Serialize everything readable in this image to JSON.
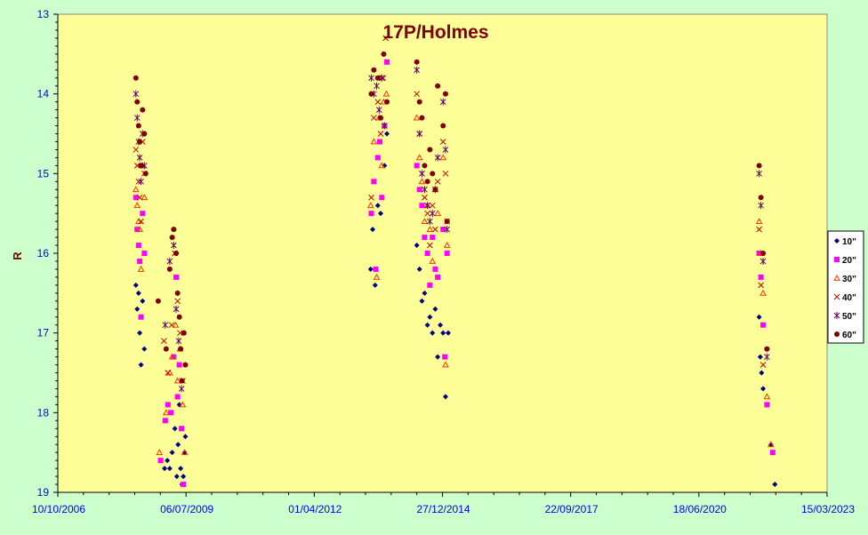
{
  "chart_data": {
    "type": "scatter",
    "title": "17P/Holmes",
    "xlabel": "",
    "ylabel": "R",
    "x_ticks": [
      "10/10/2006",
      "06/07/2009",
      "01/04/2012",
      "27/12/2014",
      "22/09/2017",
      "18/06/2020",
      "15/03/2023"
    ],
    "xlim": [
      "2006-10-10",
      "2023-03-15"
    ],
    "y_ticks": [
      "13",
      "14",
      "15",
      "16",
      "17",
      "18",
      "19"
    ],
    "ylim": [
      19,
      13
    ],
    "y_inverted": true,
    "grid": false,
    "legend_position": "right",
    "colors": {
      "page_background": "#ccffcc",
      "plot_background": "#ffff99",
      "title": "#800000",
      "tick_labels": "#0000ff"
    },
    "series": [
      {
        "name": "10\"",
        "marker": "diamond",
        "color": "#000080",
        "points": [
          [
            "2008-06-10",
            16.4
          ],
          [
            "2008-06-20",
            16.7
          ],
          [
            "2008-07-01",
            16.5
          ],
          [
            "2008-07-10",
            17.0
          ],
          [
            "2008-07-20",
            17.4
          ],
          [
            "2008-08-01",
            16.6
          ],
          [
            "2008-08-15",
            17.2
          ],
          [
            "2009-01-20",
            18.7
          ],
          [
            "2009-02-10",
            18.6
          ],
          [
            "2009-03-01",
            18.7
          ],
          [
            "2009-03-20",
            18.5
          ],
          [
            "2009-04-10",
            18.2
          ],
          [
            "2009-04-25",
            18.8
          ],
          [
            "2009-05-05",
            18.4
          ],
          [
            "2009-05-15",
            17.9
          ],
          [
            "2009-05-25",
            18.7
          ],
          [
            "2009-06-05",
            18.9
          ],
          [
            "2009-06-15",
            18.8
          ],
          [
            "2009-06-25",
            18.5
          ],
          [
            "2009-07-01",
            18.3
          ],
          [
            "2013-06-15",
            16.2
          ],
          [
            "2013-07-01",
            15.7
          ],
          [
            "2013-07-20",
            16.4
          ],
          [
            "2013-08-10",
            15.4
          ],
          [
            "2013-09-01",
            15.5
          ],
          [
            "2013-10-01",
            14.9
          ],
          [
            "2013-10-20",
            14.5
          ],
          [
            "2014-06-10",
            15.9
          ],
          [
            "2014-07-01",
            16.2
          ],
          [
            "2014-07-20",
            16.6
          ],
          [
            "2014-08-10",
            16.5
          ],
          [
            "2014-09-01",
            16.9
          ],
          [
            "2014-09-20",
            16.8
          ],
          [
            "2014-10-10",
            17.0
          ],
          [
            "2014-11-01",
            16.7
          ],
          [
            "2014-11-20",
            17.3
          ],
          [
            "2014-12-10",
            16.9
          ],
          [
            "2015-01-01",
            17.0
          ],
          [
            "2015-01-20",
            17.8
          ],
          [
            "2015-02-10",
            17.0
          ],
          [
            "2021-10-01",
            16.8
          ],
          [
            "2021-10-10",
            17.3
          ],
          [
            "2021-10-20",
            17.5
          ],
          [
            "2021-11-01",
            17.7
          ],
          [
            "2022-01-01",
            18.4
          ],
          [
            "2022-02-01",
            18.9
          ]
        ]
      },
      {
        "name": "20\"",
        "marker": "square",
        "color": "#ff00ff",
        "points": [
          [
            "2008-06-10",
            15.3
          ],
          [
            "2008-06-20",
            15.7
          ],
          [
            "2008-07-01",
            15.9
          ],
          [
            "2008-07-10",
            16.1
          ],
          [
            "2008-07-20",
            16.8
          ],
          [
            "2008-08-01",
            15.5
          ],
          [
            "2008-08-15",
            16.0
          ],
          [
            "2008-12-20",
            18.6
          ],
          [
            "2009-01-25",
            18.1
          ],
          [
            "2009-02-15",
            17.9
          ],
          [
            "2009-03-10",
            18.0
          ],
          [
            "2009-04-01",
            17.3
          ],
          [
            "2009-04-20",
            16.3
          ],
          [
            "2009-05-01",
            17.8
          ],
          [
            "2009-05-15",
            17.4
          ],
          [
            "2009-06-01",
            18.2
          ],
          [
            "2009-06-15",
            18.9
          ],
          [
            "2013-06-20",
            15.5
          ],
          [
            "2013-07-10",
            15.1
          ],
          [
            "2013-07-25",
            16.2
          ],
          [
            "2013-08-10",
            14.8
          ],
          [
            "2013-08-25",
            14.6
          ],
          [
            "2013-09-10",
            15.3
          ],
          [
            "2013-10-01",
            14.4
          ],
          [
            "2013-10-20",
            13.6
          ],
          [
            "2014-06-10",
            14.9
          ],
          [
            "2014-07-01",
            15.2
          ],
          [
            "2014-07-20",
            15.4
          ],
          [
            "2014-08-10",
            15.8
          ],
          [
            "2014-09-01",
            16.0
          ],
          [
            "2014-09-20",
            16.4
          ],
          [
            "2014-10-10",
            15.8
          ],
          [
            "2014-11-01",
            16.2
          ],
          [
            "2014-11-20",
            16.3
          ],
          [
            "2015-01-01",
            15.7
          ],
          [
            "2015-01-15",
            17.3
          ],
          [
            "2015-02-01",
            16.0
          ],
          [
            "2021-10-01",
            16.0
          ],
          [
            "2021-10-15",
            16.3
          ],
          [
            "2021-11-01",
            16.9
          ],
          [
            "2021-12-01",
            17.9
          ],
          [
            "2022-01-15",
            18.5
          ]
        ]
      },
      {
        "name": "30\"",
        "marker": "triangle",
        "color": "#ff3300",
        "points": [
          [
            "2008-06-10",
            15.2
          ],
          [
            "2008-06-20",
            15.4
          ],
          [
            "2008-07-01",
            15.6
          ],
          [
            "2008-07-10",
            15.7
          ],
          [
            "2008-07-20",
            16.2
          ],
          [
            "2008-08-01",
            14.9
          ],
          [
            "2008-08-15",
            15.3
          ],
          [
            "2008-12-10",
            18.5
          ],
          [
            "2009-02-01",
            18.0
          ],
          [
            "2009-03-01",
            17.5
          ],
          [
            "2009-03-20",
            17.3
          ],
          [
            "2009-04-15",
            16.9
          ],
          [
            "2009-05-01",
            17.6
          ],
          [
            "2009-05-20",
            17.2
          ],
          [
            "2009-06-10",
            17.9
          ],
          [
            "2009-06-25",
            18.5
          ],
          [
            "2013-06-15",
            15.4
          ],
          [
            "2013-07-10",
            14.6
          ],
          [
            "2013-08-01",
            16.3
          ],
          [
            "2013-08-20",
            14.3
          ],
          [
            "2013-09-10",
            14.9
          ],
          [
            "2013-09-25",
            14.1
          ],
          [
            "2013-10-15",
            14.0
          ],
          [
            "2014-06-10",
            14.3
          ],
          [
            "2014-07-01",
            14.8
          ],
          [
            "2014-07-20",
            15.1
          ],
          [
            "2014-08-10",
            15.6
          ],
          [
            "2014-09-01",
            15.4
          ],
          [
            "2014-09-20",
            15.7
          ],
          [
            "2014-10-10",
            16.1
          ],
          [
            "2014-11-01",
            15.2
          ],
          [
            "2014-11-20",
            15.5
          ],
          [
            "2015-01-01",
            14.8
          ],
          [
            "2015-01-20",
            17.4
          ],
          [
            "2015-02-01",
            15.9
          ],
          [
            "2021-10-01",
            15.6
          ],
          [
            "2021-10-15",
            16.0
          ],
          [
            "2021-11-01",
            16.5
          ],
          [
            "2021-12-01",
            17.8
          ],
          [
            "2022-01-01",
            18.4
          ]
        ]
      },
      {
        "name": "40\"",
        "marker": "x",
        "color": "#cc0000",
        "points": [
          [
            "2008-06-10",
            14.7
          ],
          [
            "2008-06-20",
            14.9
          ],
          [
            "2008-07-01",
            15.1
          ],
          [
            "2008-07-10",
            15.3
          ],
          [
            "2008-07-20",
            15.6
          ],
          [
            "2008-08-01",
            14.6
          ],
          [
            "2008-08-15",
            15.0
          ],
          [
            "2009-01-15",
            17.1
          ],
          [
            "2009-02-15",
            17.5
          ],
          [
            "2009-03-15",
            16.9
          ],
          [
            "2009-04-10",
            16.0
          ],
          [
            "2009-05-01",
            16.6
          ],
          [
            "2009-05-20",
            17.0
          ],
          [
            "2009-06-10",
            17.6
          ],
          [
            "2013-06-20",
            15.3
          ],
          [
            "2013-07-10",
            14.3
          ],
          [
            "2013-08-10",
            14.1
          ],
          [
            "2013-09-01",
            14.5
          ],
          [
            "2013-09-20",
            13.8
          ],
          [
            "2013-10-10",
            13.3
          ],
          [
            "2014-06-10",
            14.0
          ],
          [
            "2014-07-01",
            14.5
          ],
          [
            "2014-07-20",
            15.0
          ],
          [
            "2014-08-10",
            15.3
          ],
          [
            "2014-09-01",
            15.5
          ],
          [
            "2014-09-20",
            15.9
          ],
          [
            "2014-10-10",
            15.4
          ],
          [
            "2014-11-01",
            15.7
          ],
          [
            "2014-11-20",
            15.1
          ],
          [
            "2015-01-01",
            14.6
          ],
          [
            "2015-01-20",
            15.0
          ],
          [
            "2015-02-01",
            15.6
          ],
          [
            "2021-10-01",
            15.7
          ],
          [
            "2021-10-15",
            16.4
          ],
          [
            "2021-11-01",
            17.4
          ]
        ]
      },
      {
        "name": "50\"",
        "marker": "star",
        "color": "#660066",
        "points": [
          [
            "2008-06-10",
            14.0
          ],
          [
            "2008-06-20",
            14.3
          ],
          [
            "2008-07-01",
            14.6
          ],
          [
            "2008-07-10",
            14.8
          ],
          [
            "2008-07-20",
            15.1
          ],
          [
            "2008-08-01",
            14.5
          ],
          [
            "2008-08-15",
            14.9
          ],
          [
            "2009-01-25",
            16.9
          ],
          [
            "2009-03-01",
            16.1
          ],
          [
            "2009-04-01",
            15.9
          ],
          [
            "2009-04-20",
            16.7
          ],
          [
            "2009-05-10",
            17.1
          ],
          [
            "2009-06-01",
            17.7
          ],
          [
            "2013-06-20",
            13.8
          ],
          [
            "2013-07-10",
            14.0
          ],
          [
            "2013-08-01",
            13.9
          ],
          [
            "2013-08-20",
            14.2
          ],
          [
            "2013-09-10",
            13.8
          ],
          [
            "2013-10-01",
            14.4
          ],
          [
            "2014-06-10",
            13.7
          ],
          [
            "2014-07-01",
            14.5
          ],
          [
            "2014-07-20",
            15.0
          ],
          [
            "2014-08-10",
            15.2
          ],
          [
            "2014-09-01",
            15.4
          ],
          [
            "2014-09-20",
            15.6
          ],
          [
            "2014-10-10",
            15.5
          ],
          [
            "2014-11-01",
            15.2
          ],
          [
            "2014-11-20",
            14.8
          ],
          [
            "2015-01-01",
            14.1
          ],
          [
            "2015-01-20",
            14.7
          ],
          [
            "2015-02-01",
            15.7
          ],
          [
            "2021-10-01",
            15.0
          ],
          [
            "2021-10-15",
            15.4
          ],
          [
            "2021-11-01",
            16.1
          ],
          [
            "2021-12-01",
            17.3
          ]
        ]
      },
      {
        "name": "60\"",
        "marker": "circle",
        "color": "#800000",
        "points": [
          [
            "2008-06-10",
            13.8
          ],
          [
            "2008-06-20",
            14.1
          ],
          [
            "2008-07-01",
            14.4
          ],
          [
            "2008-07-10",
            14.6
          ],
          [
            "2008-07-20",
            14.9
          ],
          [
            "2008-08-01",
            14.2
          ],
          [
            "2008-08-15",
            14.5
          ],
          [
            "2008-08-25",
            15.0
          ],
          [
            "2008-12-01",
            16.6
          ],
          [
            "2009-02-01",
            17.2
          ],
          [
            "2009-03-01",
            16.2
          ],
          [
            "2009-03-20",
            15.8
          ],
          [
            "2009-04-01",
            15.7
          ],
          [
            "2009-04-20",
            16.0
          ],
          [
            "2009-05-01",
            16.5
          ],
          [
            "2009-05-15",
            16.8
          ],
          [
            "2009-05-25",
            17.2
          ],
          [
            "2009-06-05",
            17.6
          ],
          [
            "2009-06-20",
            17.0
          ],
          [
            "2009-07-01",
            17.4
          ],
          [
            "2013-06-20",
            14.0
          ],
          [
            "2013-07-10",
            13.7
          ],
          [
            "2013-08-10",
            13.8
          ],
          [
            "2013-09-01",
            14.3
          ],
          [
            "2013-09-25",
            13.5
          ],
          [
            "2013-10-20",
            14.1
          ],
          [
            "2014-06-10",
            13.6
          ],
          [
            "2014-07-01",
            14.1
          ],
          [
            "2014-07-20",
            14.3
          ],
          [
            "2014-08-10",
            14.9
          ],
          [
            "2014-09-01",
            15.1
          ],
          [
            "2014-09-20",
            14.7
          ],
          [
            "2014-10-10",
            15.0
          ],
          [
            "2014-11-01",
            15.2
          ],
          [
            "2014-11-20",
            13.9
          ],
          [
            "2015-01-01",
            14.4
          ],
          [
            "2015-01-20",
            14.0
          ],
          [
            "2015-02-01",
            15.6
          ],
          [
            "2021-10-01",
            14.9
          ],
          [
            "2021-10-15",
            15.3
          ],
          [
            "2021-11-01",
            16.0
          ],
          [
            "2021-12-01",
            17.2
          ]
        ]
      }
    ]
  }
}
